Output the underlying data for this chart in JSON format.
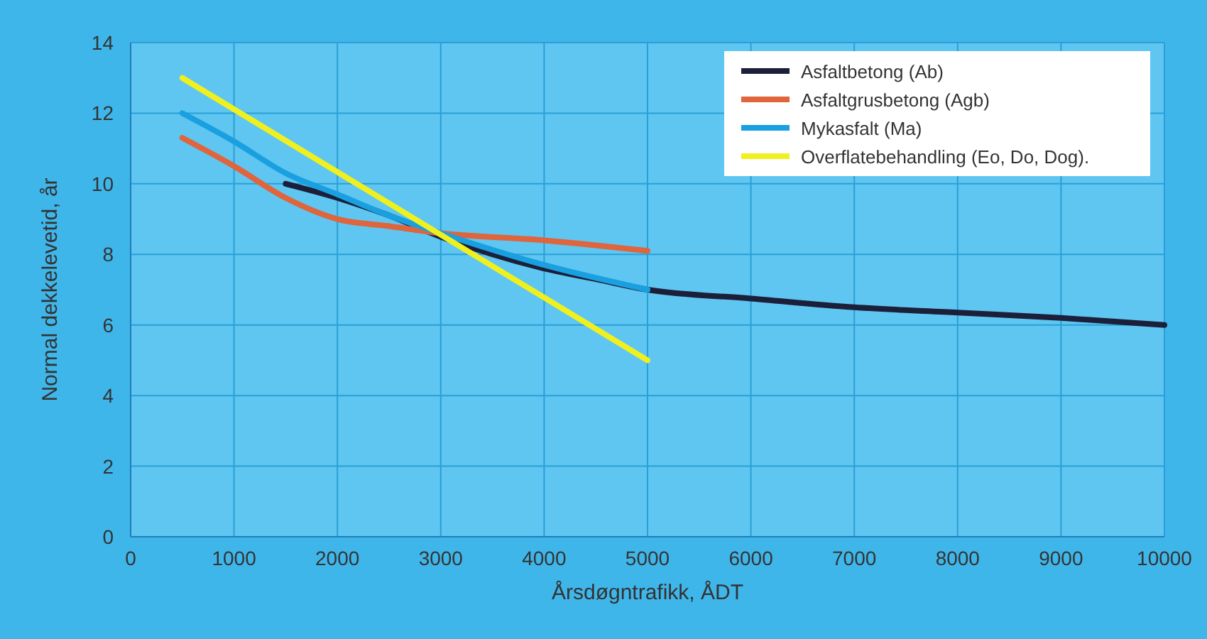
{
  "chart_data": {
    "type": "line",
    "xlabel": "Årsdøgntrafikk, ÅDT",
    "ylabel": "Normal dekkelevetid, år",
    "xlim": [
      0,
      10000
    ],
    "xticks": [
      0,
      1000,
      2000,
      3000,
      4000,
      5000,
      6000,
      7000,
      8000,
      9000,
      10000
    ],
    "ylim": [
      0,
      14
    ],
    "yticks": [
      0,
      2,
      4,
      6,
      8,
      10,
      12,
      14
    ],
    "grid": true,
    "legend": "top right",
    "line_style": "solid",
    "marker": "none",
    "series": [
      {
        "name": "Asfaltbetong (Ab)",
        "color": "#1b1f3a",
        "x": [
          1500,
          2000,
          2500,
          3000,
          3500,
          4000,
          4500,
          5000,
          6000,
          7000,
          8000,
          9000,
          10000
        ],
        "values": [
          10.0,
          9.6,
          9.1,
          8.5,
          8.0,
          7.6,
          7.3,
          7.0,
          6.75,
          6.5,
          6.35,
          6.2,
          6.0
        ]
      },
      {
        "name": "Asfaltgrusbetong (Agb)",
        "color": "#e0643c",
        "x": [
          500,
          1000,
          1500,
          2000,
          2500,
          3000,
          4000,
          5000
        ],
        "values": [
          11.3,
          10.5,
          9.6,
          9.0,
          8.8,
          8.6,
          8.4,
          8.1
        ]
      },
      {
        "name": "Mykasfalt (Ma)",
        "color": "#1aa0e0",
        "x": [
          500,
          1000,
          1500,
          2000,
          2500,
          3000,
          4000,
          5000
        ],
        "values": [
          12.0,
          11.2,
          10.3,
          9.7,
          9.1,
          8.6,
          7.7,
          7.0
        ]
      },
      {
        "name": "Overflatebehandling (Eo, Do, Dog).",
        "color": "#f0f020",
        "x": [
          500,
          5000
        ],
        "values": [
          13.0,
          5.0
        ]
      }
    ]
  }
}
